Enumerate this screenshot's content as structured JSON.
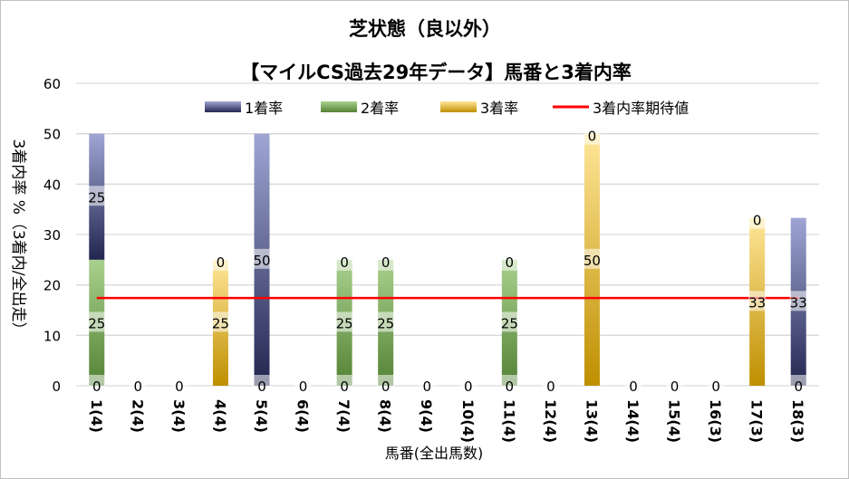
{
  "chart_data": {
    "type": "bar",
    "stacked": true,
    "title": "芝状態（良以外）",
    "subtitle": "【マイルCS過去29年データ】馬番と3着内率",
    "xlabel": "馬番(全出馬数)",
    "ylabel": "3着内率 %（3着内/全出走）",
    "ylim": [
      0,
      60
    ],
    "yticks": [
      0,
      10,
      20,
      30,
      40,
      50,
      60
    ],
    "grid": true,
    "legend_position": "top",
    "categories": [
      "1(4)",
      "2(4)",
      "3(4)",
      "4(4)",
      "5(4)",
      "6(4)",
      "7(4)",
      "8(4)",
      "9(4)",
      "10(4)",
      "11(4)",
      "12(4)",
      "13(4)",
      "14(4)",
      "15(4)",
      "16(3)",
      "17(3)",
      "18(3)"
    ],
    "series": [
      {
        "name": "3着率",
        "color": "#bf8f00",
        "light": "#ffe699",
        "values": [
          0,
          0,
          0,
          25,
          0,
          0,
          0,
          0,
          0,
          0,
          0,
          0,
          50,
          0,
          0,
          0,
          33.3,
          0
        ]
      },
      {
        "name": "2着率",
        "color": "#548235",
        "light": "#a9d18e",
        "values": [
          25,
          0,
          0,
          0,
          0,
          0,
          25,
          25,
          0,
          0,
          25,
          0,
          0,
          0,
          0,
          0,
          0,
          0
        ]
      },
      {
        "name": "1着率",
        "color": "#22264f",
        "light": "#a0a6d4",
        "values": [
          25,
          0,
          0,
          0,
          50,
          0,
          0,
          0,
          0,
          0,
          0,
          0,
          0,
          0,
          0,
          0,
          0,
          33.3
        ]
      }
    ],
    "legend": [
      "1着率",
      "2着率",
      "3着率",
      "3着内率期待値"
    ],
    "expected_line": {
      "name": "3着内率期待値",
      "value": 17.4,
      "color": "#ff0000"
    }
  }
}
